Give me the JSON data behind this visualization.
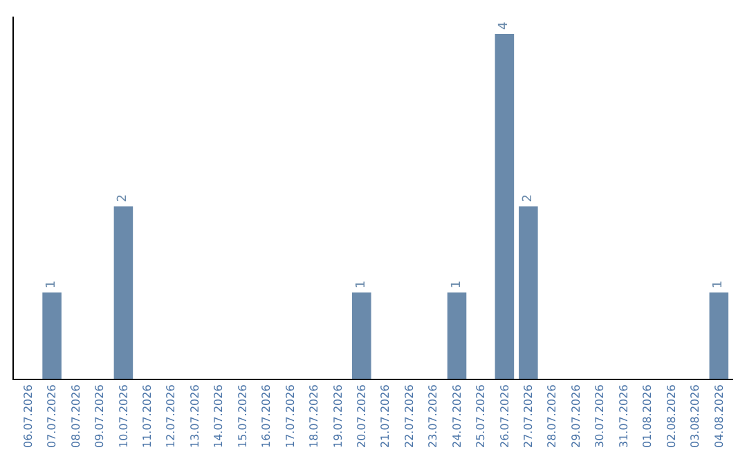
{
  "chart_data": {
    "type": "bar",
    "categories": [
      "06.07.2026",
      "07.07.2026",
      "08.07.2026",
      "09.07.2026",
      "10.07.2026",
      "11.07.2026",
      "12.07.2026",
      "13.07.2026",
      "14.07.2026",
      "15.07.2026",
      "16.07.2026",
      "17.07.2026",
      "18.07.2026",
      "19.07.2026",
      "20.07.2026",
      "21.07.2026",
      "22.07.2026",
      "23.07.2026",
      "24.07.2026",
      "25.07.2026",
      "26.07.2026",
      "27.07.2026",
      "28.07.2026",
      "29.07.2026",
      "30.07.2026",
      "31.07.2026",
      "01.08.2026",
      "02.08.2026",
      "03.08.2026",
      "04.08.2026"
    ],
    "values": [
      0,
      1,
      0,
      0,
      2,
      0,
      0,
      0,
      0,
      0,
      0,
      0,
      0,
      0,
      1,
      0,
      0,
      0,
      1,
      0,
      4,
      2,
      0,
      0,
      0,
      0,
      0,
      0,
      0,
      1
    ],
    "value_labels": [
      null,
      "1",
      null,
      null,
      "2",
      null,
      null,
      null,
      null,
      null,
      null,
      null,
      null,
      null,
      "1",
      null,
      null,
      null,
      "1",
      null,
      "4",
      "2",
      null,
      null,
      null,
      null,
      null,
      null,
      null,
      "1"
    ],
    "color": "#6a8aab"
  }
}
